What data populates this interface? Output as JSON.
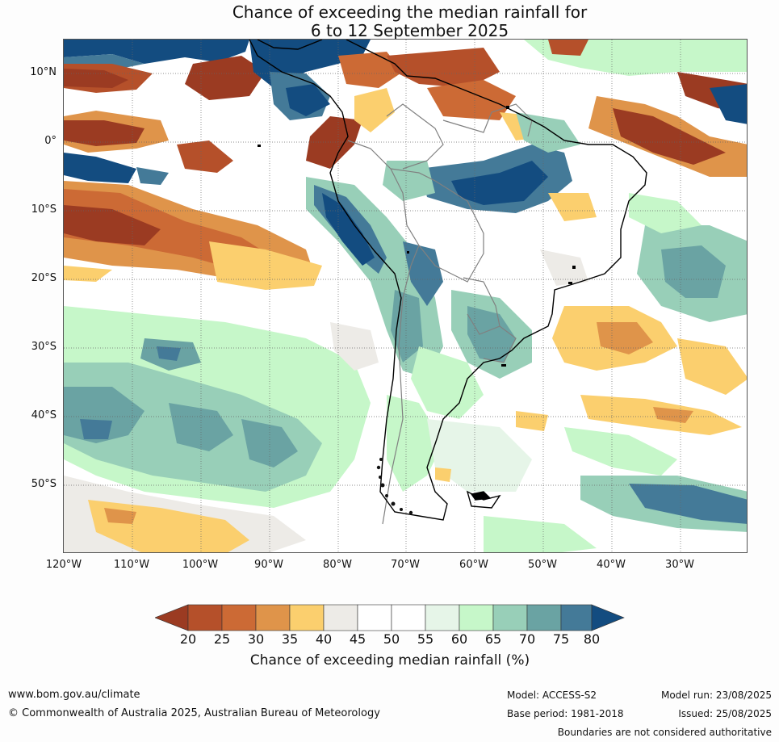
{
  "title": {
    "line1": "Chance of exceeding the median rainfall for",
    "line2": "6 to 12 September 2025"
  },
  "map": {
    "lat_labels": [
      "10°N",
      "0°",
      "10°S",
      "20°S",
      "30°S",
      "40°S",
      "50°S"
    ],
    "lon_labels": [
      "120°W",
      "110°W",
      "100°W",
      "90°W",
      "80°W",
      "70°W",
      "60°W",
      "50°W",
      "40°W",
      "30°W"
    ],
    "colors": {
      "20": "#9b3b22",
      "25": "#b5502a",
      "30": "#cc6a35",
      "35": "#df944a",
      "40": "#fbcf6e",
      "45": "#edebe7",
      "50": "#ffffff",
      "55": "#ffffff",
      "60": "#e6f5e8",
      "65": "#c6f7c9",
      "70": "#98cfb8",
      "75": "#6aa3a3",
      "80": "#447a98",
      "over": "#134c80"
    },
    "coastline_color": "#000000",
    "boundary_color": "#808080"
  },
  "colorbar": {
    "ticks": [
      "20",
      "25",
      "30",
      "35",
      "40",
      "45",
      "50",
      "55",
      "60",
      "65",
      "70",
      "75",
      "80"
    ],
    "label": "Chance of exceeding median rainfall (%)"
  },
  "footer": {
    "website": "www.bom.gov.au/climate",
    "copyright": "© Commonwealth of Australia 2025, Australian Bureau of Meteorology",
    "model": "Model: ACCESS-S2",
    "base_period": "Base period: 1981-2018",
    "model_run": "Model run: 23/08/2025",
    "issued": "Issued: 25/08/2025",
    "disclaimer": "Boundaries are not considered authoritative"
  }
}
